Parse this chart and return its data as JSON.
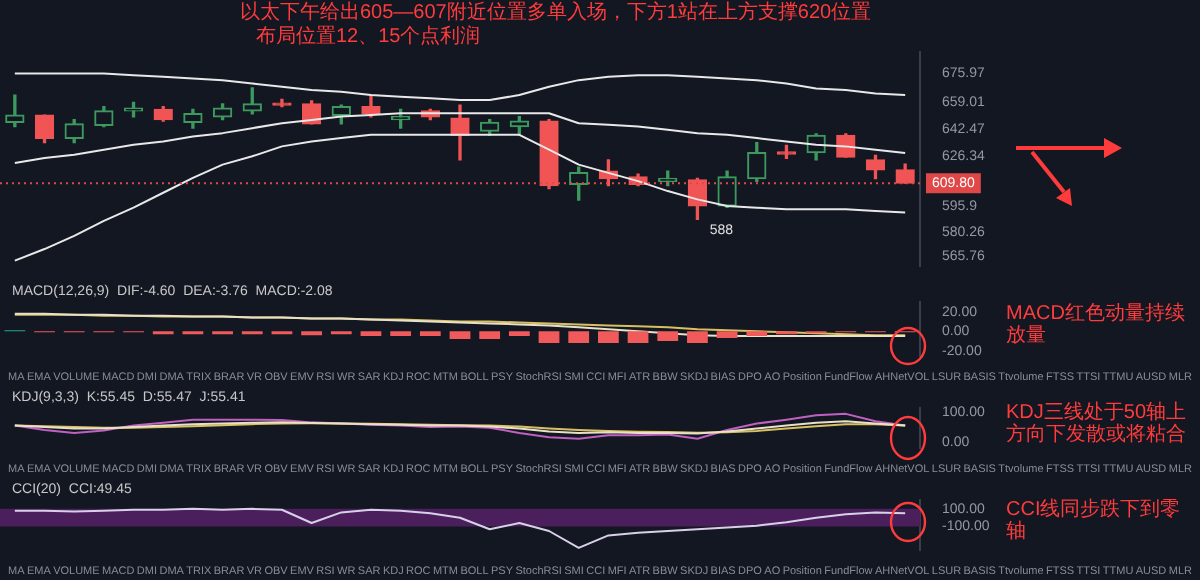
{
  "chart_data": [
    {
      "type": "candlestick",
      "categories": [
        null,
        null,
        null,
        null,
        null,
        null,
        null,
        null,
        null,
        null,
        null,
        null,
        null,
        null,
        null,
        null,
        null,
        null,
        null,
        null,
        null,
        null,
        null,
        null,
        null,
        null,
        null,
        null,
        null,
        null,
        null
      ],
      "ohlc": [
        [
          646.5,
          663.0,
          643.9,
          650.8
        ],
        [
          650.8,
          650.8,
          634.3,
          636.9
        ],
        [
          636.9,
          648.2,
          634.3,
          645.6
        ],
        [
          644.7,
          656.0,
          643.9,
          653.4
        ],
        [
          653.4,
          658.6,
          649.9,
          655.1
        ],
        [
          654.3,
          656.0,
          647.3,
          648.2
        ],
        [
          646.5,
          654.3,
          643.0,
          651.7
        ],
        [
          649.9,
          657.7,
          648.2,
          655.1
        ],
        [
          653.4,
          667.3,
          651.7,
          657.7
        ],
        [
          657.7,
          660.3,
          656.0,
          656.9
        ],
        [
          657.7,
          659.5,
          645.6,
          645.6
        ],
        [
          650.8,
          656.9,
          645.6,
          656.0
        ],
        [
          656.0,
          663.0,
          649.9,
          651.7
        ],
        [
          648.2,
          654.3,
          643.0,
          649.9
        ],
        [
          653.4,
          654.3,
          648.2,
          649.9
        ],
        [
          649.1,
          656.9,
          623.9,
          638.6
        ],
        [
          641.3,
          648.2,
          638.6,
          646.5
        ],
        [
          643.9,
          649.9,
          638.6,
          647.3
        ],
        [
          647.3,
          648.2,
          606.5,
          608.3
        ],
        [
          609.1,
          619.5,
          599.6,
          616.1
        ],
        [
          617.0,
          623.9,
          608.3,
          612.6
        ],
        [
          613.5,
          615.2,
          608.3,
          609.1
        ],
        [
          610.9,
          617.0,
          608.3,
          612.6
        ],
        [
          611.8,
          612.6,
          588,
          596.1
        ],
        [
          596.1,
          617.0,
          595.2,
          613.5
        ],
        [
          612.6,
          634.3,
          610.9,
          628.2
        ],
        [
          628.2,
          632.6,
          624.8,
          627.4
        ],
        [
          628.2,
          639.5,
          623.9,
          638.6
        ],
        [
          638.6,
          639.5,
          625.6,
          625.6
        ],
        [
          623.9,
          626.5,
          612.6,
          617.8
        ],
        [
          617.8,
          621.3,
          609.8,
          609.8
        ]
      ],
      "series": [
        {
          "type": "line",
          "color": "#e8e8e8",
          "values": [
            676,
            676,
            676,
            676,
            675,
            674,
            673,
            672,
            670,
            668,
            666,
            665,
            663,
            662,
            661,
            660,
            660,
            663,
            668,
            672,
            674,
            675,
            675,
            674,
            673,
            672,
            670,
            667,
            666,
            664,
            663
          ]
        },
        {
          "type": "line",
          "color": "#e8e8e8",
          "values": [
            622,
            625,
            627,
            630,
            633,
            635,
            638,
            640,
            643,
            646,
            648,
            650,
            651,
            652,
            652,
            652,
            652,
            652,
            652,
            646,
            645,
            644,
            642,
            640,
            639,
            637,
            635,
            633,
            632,
            630,
            628
          ]
        },
        {
          "type": "line",
          "color": "#e8e8e8",
          "values": [
            563,
            570,
            578,
            587,
            595,
            604,
            613,
            621,
            626,
            632,
            635,
            637,
            639,
            639,
            639,
            639,
            639,
            639,
            630,
            621,
            616,
            611,
            605,
            600,
            596,
            595,
            594,
            594,
            594,
            593,
            592
          ]
        }
      ],
      "ylim": [
        560,
        689
      ],
      "yticks": [
        565.76,
        580.26,
        595.9,
        626.34,
        642.47,
        659.01,
        675.97
      ],
      "ref_lines": [
        {
          "axis": "y",
          "value": 609.8,
          "label": "609.80",
          "color": "#e04848",
          "line_style": "dotted"
        }
      ],
      "annotations": [
        "以太下午给出605—607附近位置多单入场，下方1站在上方支撑620位置",
        "布局位置12、15个点利润",
        "588"
      ],
      "tick_labels": "y",
      "marker": "none",
      "legend": false,
      "grid": false
    },
    {
      "type": "bar",
      "subtitle": "MACD(12,26,9)  DIF:-4.60  DEA:-3.76  MACD:-2.08",
      "categories": [
        null,
        null,
        null,
        null,
        null,
        null,
        null,
        null,
        null,
        null,
        null,
        null,
        null,
        null,
        null,
        null,
        null,
        null,
        null,
        null,
        null,
        null,
        null,
        null,
        null,
        null,
        null,
        null,
        null,
        null,
        null
      ],
      "series": [
        {
          "type": "bar",
          "colors": [
            "#26a69a",
            "#f05a5a",
            "#f05a5a",
            "#f05a5a",
            "#f05a5a",
            "#f05a5a",
            "#f05a5a",
            "#f05a5a",
            "#f05a5a",
            "#f05a5a",
            "#f05a5a",
            "#f05a5a",
            "#f05a5a",
            "#f05a5a",
            "#f05a5a",
            "#f05a5a",
            "#f05a5a",
            "#f05a5a",
            "#f05a5a",
            "#f05a5a",
            "#f05a5a",
            "#f05a5a",
            "#f05a5a",
            "#f05a5a",
            "#f05a5a",
            "#f05a5a",
            "#f05a5a",
            "#f05a5a",
            "#f05a5a",
            "#f05a5a",
            "#f05a5a"
          ],
          "values": [
            1,
            -1,
            -1,
            -1,
            -1,
            -3,
            -3,
            -3,
            -3,
            -3,
            -4,
            -3,
            -5,
            -5,
            -5,
            -8,
            -8,
            -5,
            -12,
            -12,
            -12,
            -12,
            -10,
            -12,
            -7,
            -5,
            -3,
            -2,
            -1,
            -1,
            -1
          ]
        },
        {
          "type": "line",
          "color": "#e8e0c8",
          "values": [
            18,
            18,
            17,
            17,
            16,
            16,
            15,
            15,
            14,
            14,
            13,
            13,
            12,
            11,
            10,
            9,
            8,
            7,
            6,
            4,
            2,
            0,
            -2,
            -4,
            -5,
            -5,
            -5,
            -5,
            -5,
            -5,
            -5
          ]
        },
        {
          "type": "line",
          "color": "#d8c060",
          "values": [
            17,
            17,
            17,
            16,
            16,
            15,
            15,
            15,
            14,
            14,
            13,
            13,
            12,
            12,
            11,
            10,
            10,
            9,
            8,
            7,
            6,
            5,
            4,
            2,
            1,
            0,
            -1,
            -2,
            -3,
            -4,
            -4
          ]
        }
      ],
      "ylim": [
        -25,
        30
      ],
      "yticks": [
        {
          "value": -20,
          "label": "-20.00"
        },
        {
          "value": 0,
          "label": "0.00"
        },
        {
          "value": 20,
          "label": "20.00"
        }
      ],
      "annotations": [
        "MACD红色动量持续放量",
        "MA EMA VOLUME MACD DMI DMA TRIX BRAR VR OBV EMV RSI WR SAR KDJ ROC MTM BOLL PSY StochRSI SMI CCI MFI ATR BBW SKDJ BIAS DPO AO Position FundFlow AHNetVOL LSUR BASIS Ttvolume FTSS TTSI TTMU AUSD MLR"
      ],
      "tick_labels": "y",
      "marker": "none",
      "legend": false,
      "grid": false
    },
    {
      "type": "line",
      "subtitle": "KDJ(9,3,3)  K:55.45  D:55.47  J:55.41",
      "categories": [
        null,
        null,
        null,
        null,
        null,
        null,
        null,
        null,
        null,
        null,
        null,
        null,
        null,
        null,
        null,
        null,
        null,
        null,
        null,
        null,
        null,
        null,
        null,
        null,
        null,
        null,
        null,
        null,
        null,
        null,
        null
      ],
      "series": [
        {
          "color": "#e8e0c8",
          "values": [
            55,
            50,
            45,
            45,
            50,
            55,
            60,
            62,
            65,
            66,
            64,
            62,
            60,
            58,
            55,
            55,
            52,
            45,
            35,
            30,
            32,
            30,
            30,
            28,
            35,
            45,
            55,
            65,
            70,
            62,
            55
          ]
        },
        {
          "color": "#d8c060",
          "values": [
            55,
            53,
            50,
            48,
            48,
            50,
            53,
            56,
            60,
            62,
            63,
            62,
            61,
            60,
            58,
            56,
            55,
            52,
            45,
            40,
            37,
            34,
            33,
            31,
            32,
            37,
            45,
            53,
            60,
            60,
            55
          ]
        },
        {
          "color": "#c060c0",
          "values": [
            55,
            40,
            30,
            38,
            55,
            65,
            75,
            75,
            75,
            74,
            66,
            62,
            58,
            55,
            50,
            52,
            48,
            30,
            15,
            10,
            22,
            22,
            25,
            10,
            40,
            62,
            75,
            90,
            95,
            70,
            55
          ]
        }
      ],
      "ylim": [
        -20,
        115
      ],
      "yticks": [
        {
          "value": 0,
          "label": "0.00"
        },
        {
          "value": 100,
          "label": "100.00"
        }
      ],
      "annotations": [
        "KDJ三线处于50轴上方向下发散或将粘合",
        "MA EMA VOLUME MACD DMI DMA TRIX BRAR VR OBV EMV RSI WR SAR KDJ ROC MTM BOLL PSY StochRSI SMI CCI MFI ATR BBW SKDJ BIAS DPO AO Position FundFlow AHNetVOL LSUR BASIS Ttvolume FTSS TTSI TTMU AUSD MLR"
      ],
      "tick_labels": "y",
      "marker": "none",
      "legend": false,
      "grid": false
    },
    {
      "type": "line",
      "subtitle": "CCI(20)  CCI:49.45",
      "categories": [
        null,
        null,
        null,
        null,
        null,
        null,
        null,
        null,
        null,
        null,
        null,
        null,
        null,
        null,
        null,
        null,
        null,
        null,
        null,
        null,
        null,
        null,
        null,
        null,
        null,
        null,
        null,
        null,
        null,
        null,
        null
      ],
      "series": [
        {
          "color": "#d8d0e8",
          "values": [
            80,
            80,
            70,
            80,
            90,
            90,
            100,
            90,
            100,
            90,
            -60,
            60,
            90,
            80,
            50,
            0,
            -130,
            -60,
            -150,
            -340,
            -200,
            -170,
            -150,
            -130,
            -110,
            -90,
            -50,
            0,
            40,
            60,
            50
          ]
        }
      ],
      "ylim": [
        -360,
        200
      ],
      "yticks": [
        {
          "value": -100,
          "label": "-100.00"
        },
        {
          "value": 100,
          "label": "100.00"
        }
      ],
      "bands": [
        {
          "axis": "y",
          "from": -100,
          "to": 100,
          "color": "#4a1f5c"
        }
      ],
      "annotations": [
        "CCI线同步跌下到零轴",
        "MA EMA VOLUME MACD DMI DMA TRIX BRAR VR OBV EMV RSI WR SAR KDJ ROC MTM BOLL PSY StochRSI SMI CCI MFI ATR BBW SKDJ BIAS DPO AO Position FundFlow AHNetVOL LSUR BASIS Ttvolume FTSS TTSI TTMU AUSD MLR"
      ],
      "tick_labels": "y",
      "marker": "none",
      "legend": false,
      "grid": false
    }
  ]
}
